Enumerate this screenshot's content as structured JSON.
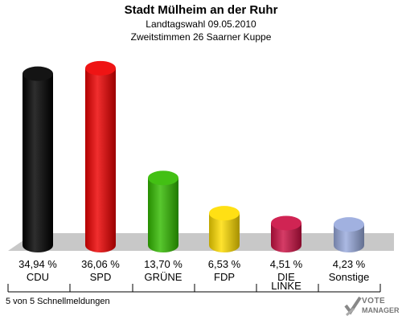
{
  "header": {
    "title": "Stadt Mülheim an der Ruhr",
    "subtitle_1": "Landtagswahl 09.05.2010",
    "subtitle_2": "Zweitstimmen 26 Saarner Kuppe"
  },
  "footer": {
    "note": "5 von 5 Schnellmeldungen",
    "logo_line1": "VOTE",
    "logo_line2": "MANAGER"
  },
  "chart_data": {
    "type": "bar",
    "categories": [
      "CDU",
      "SPD",
      "GRÜNE",
      "FDP",
      "DIE LINKE",
      "Sonstige"
    ],
    "values": [
      34.94,
      36.06,
      13.7,
      6.53,
      4.51,
      4.23
    ],
    "value_labels": [
      "34,94 %",
      "36,06 %",
      "13,70 %",
      "6,53 %",
      "4,51 %",
      "4,23 %"
    ],
    "colors": [
      "#000000",
      "#ee0000",
      "#33bb00",
      "#ffdd00",
      "#cc1144",
      "#99aadd"
    ],
    "title": "Stadt Mülheim an der Ruhr",
    "xlabel": "",
    "ylabel": "",
    "ylim": [
      0,
      38
    ]
  }
}
